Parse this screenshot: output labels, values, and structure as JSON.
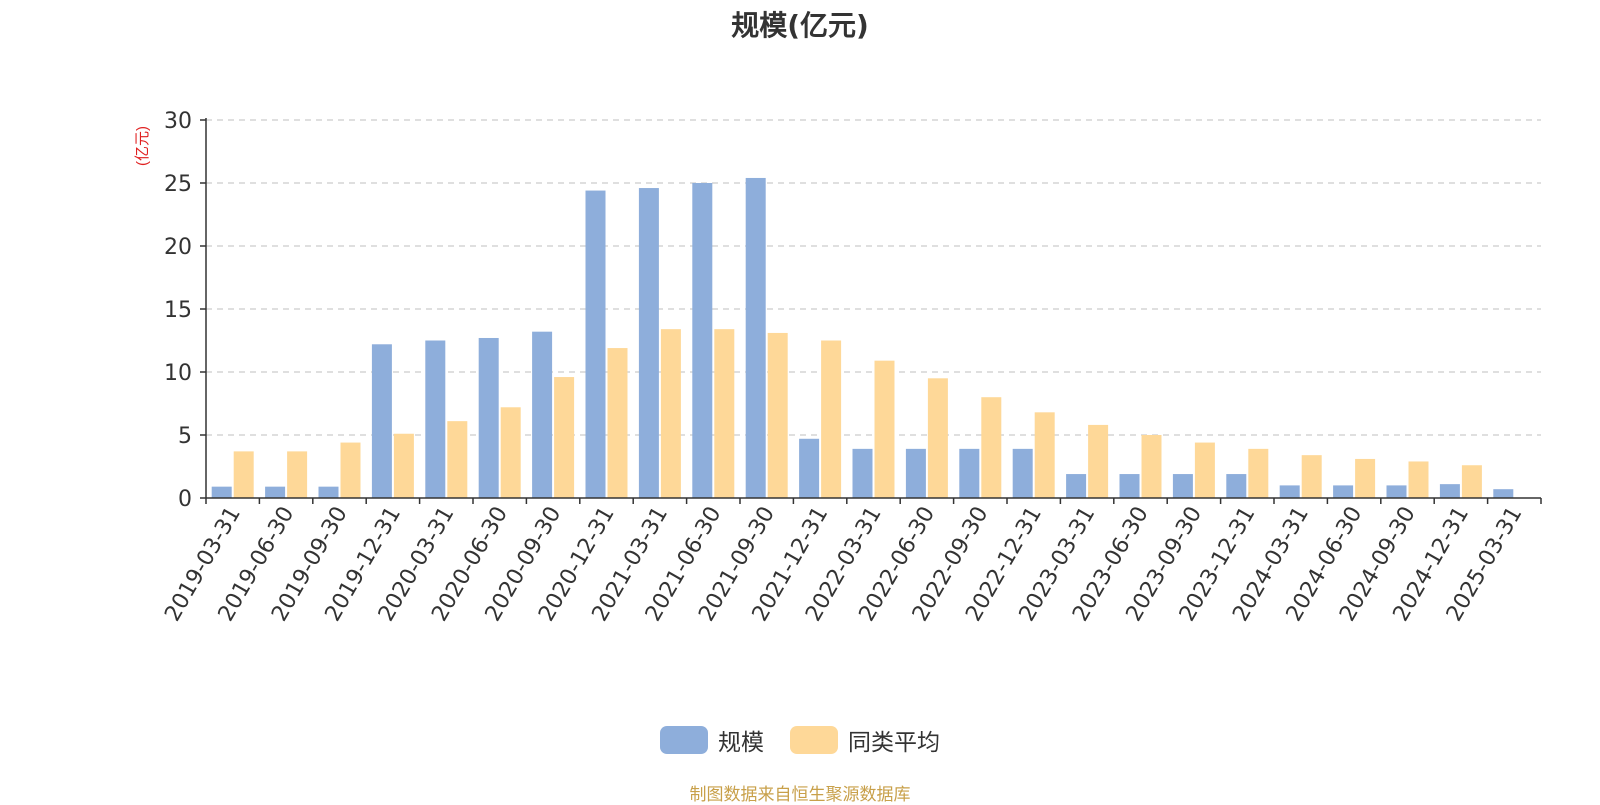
{
  "chart_data": {
    "type": "bar",
    "title": "规模(亿元)",
    "ylabel": "(亿元)",
    "xlabel": "",
    "ylim": [
      0,
      30
    ],
    "yticks": [
      0,
      5,
      10,
      15,
      20,
      25,
      30
    ],
    "grid": true,
    "legend_position": "bottom-center",
    "categories": [
      "2019-03-31",
      "2019-06-30",
      "2019-09-30",
      "2019-12-31",
      "2020-03-31",
      "2020-06-30",
      "2020-09-30",
      "2020-12-31",
      "2021-03-31",
      "2021-06-30",
      "2021-09-30",
      "2021-12-31",
      "2022-03-31",
      "2022-06-30",
      "2022-09-30",
      "2022-12-31",
      "2023-03-31",
      "2023-06-30",
      "2023-09-30",
      "2023-12-31",
      "2024-03-31",
      "2024-06-30",
      "2024-09-30",
      "2024-12-31",
      "2025-03-31"
    ],
    "series": [
      {
        "name": "规模",
        "color": "#8eaedb",
        "values": [
          0.9,
          0.9,
          0.9,
          12.2,
          12.5,
          12.7,
          13.2,
          24.4,
          24.6,
          25.0,
          25.4,
          4.7,
          3.9,
          3.9,
          3.9,
          3.9,
          1.9,
          1.9,
          1.9,
          1.9,
          1.0,
          1.0,
          1.0,
          1.1,
          0.7
        ]
      },
      {
        "name": "同类平均",
        "color": "#fed898",
        "values": [
          3.7,
          3.7,
          4.4,
          5.1,
          6.1,
          7.2,
          9.6,
          11.9,
          13.4,
          13.4,
          13.1,
          12.5,
          10.9,
          9.5,
          8.0,
          6.8,
          5.8,
          5.0,
          4.4,
          3.9,
          3.4,
          3.1,
          2.9,
          2.6,
          null
        ]
      }
    ]
  },
  "footer": {
    "source": "制图数据来自恒生聚源数据库"
  }
}
